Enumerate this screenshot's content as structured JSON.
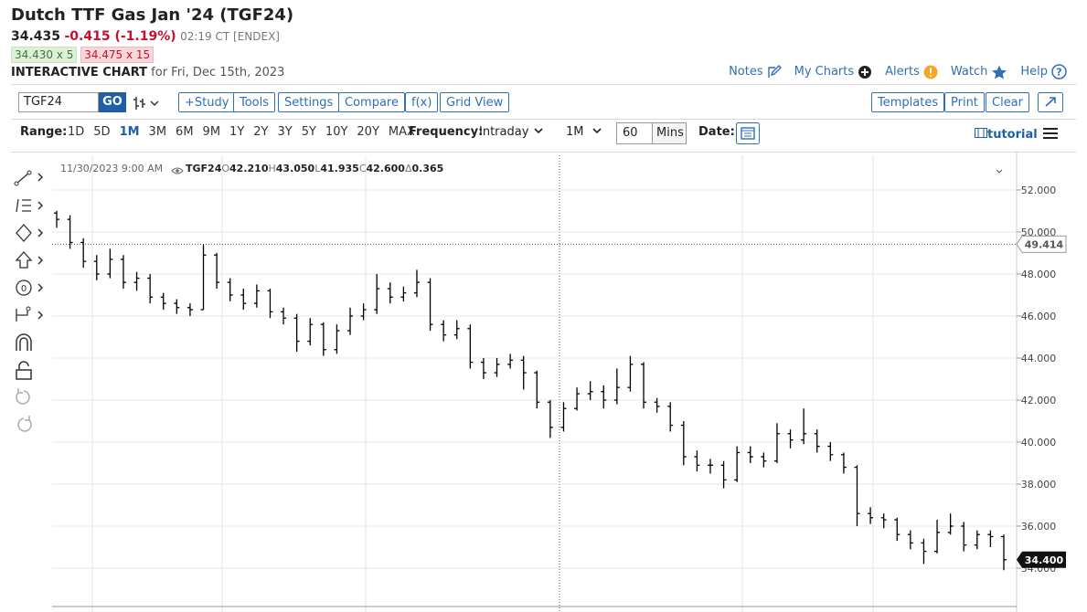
{
  "header": {
    "title": "Dutch TTF Gas Jan '24 (TGF24)",
    "last": "34.435",
    "change": "-0.415 (-1.19%)",
    "time": "02:19 CT [ENDEX]",
    "bid": "34.430 x 5",
    "ask": "34.475 x 15",
    "chart_label": "INTERACTIVE CHART",
    "chart_date": "for Fri, Dec 15th, 2023"
  },
  "links": [
    "Notes",
    "My Charts",
    "Alerts",
    "Watch",
    "Help"
  ],
  "toolbar": {
    "symbol": "TGF24",
    "go": "GO",
    "buttons": [
      "+Study",
      "Tools",
      "Settings",
      "Compare",
      "f(x)",
      "Grid View"
    ],
    "right_buttons": [
      "Templates",
      "Print",
      "Clear"
    ]
  },
  "range_bar": {
    "range_label": "Range:",
    "ranges": [
      "1D",
      "5D",
      "1M",
      "3M",
      "6M",
      "9M",
      "1Y",
      "2Y",
      "3Y",
      "5Y",
      "10Y",
      "20Y",
      "MAX"
    ],
    "active_range": 2,
    "frequency_label": "Frequency:",
    "frequency": "Intraday",
    "interval": "1M",
    "period": "60",
    "period_unit": "Mins",
    "date_label": "Date:",
    "tutorial": "tutorial"
  },
  "chart_data": {
    "type": "ohlc",
    "hover": {
      "date": "11/30/2023 9:00 AM",
      "symbol": "TGF24",
      "open_label": "O",
      "open": "42.210",
      "high_label": "H",
      "high": "43.050",
      "low_label": "L",
      "low": "41.935",
      "close_label": "C",
      "close": "42.600",
      "change_label": "Δ",
      "change": "0.365"
    },
    "ylim": [
      32.13,
      53.65
    ],
    "yticks": [
      {
        "value": 34,
        "label": "34.000"
      },
      {
        "value": 36,
        "label": "36.000"
      },
      {
        "value": 38,
        "label": "38.000"
      },
      {
        "value": 40,
        "label": "40.000"
      },
      {
        "value": 42,
        "label": "42.000"
      },
      {
        "value": 44,
        "label": "44.000"
      },
      {
        "value": 46,
        "label": "46.000"
      },
      {
        "value": 48,
        "label": "48.000"
      },
      {
        "value": 50,
        "label": "50.000"
      },
      {
        "value": 52,
        "label": "52.000"
      }
    ],
    "grid": true,
    "crosshair_price": {
      "value": 49.414,
      "label": "49.414"
    },
    "last_price": {
      "value": 34.4,
      "label": "34.400"
    },
    "series": [
      {
        "color": "#000000",
        "open": [
          50.9,
          50.6,
          49.5,
          48.6,
          48.0,
          48.7,
          47.6,
          47.8,
          46.9,
          46.6,
          46.4,
          46.3,
          48.9,
          47.6,
          47.0,
          46.6,
          47.2,
          46.2,
          45.9,
          44.8,
          45.6,
          44.4,
          45.3,
          46.0,
          46.3,
          47.3,
          46.9,
          47.1,
          47.6,
          45.6,
          45.1,
          45.4,
          43.8,
          43.3,
          43.7,
          43.9,
          43.3,
          41.9,
          40.7,
          41.6,
          42.3,
          42.4,
          42.0,
          42.6,
          43.7,
          41.9,
          41.7,
          40.8,
          39.3,
          38.9,
          38.9,
          38.2,
          39.5,
          39.3,
          39.1,
          40.4,
          40.1,
          40.4,
          39.8,
          39.4,
          38.8,
          36.6,
          36.4,
          36.3,
          35.6,
          35.2,
          34.8,
          35.7,
          36.0,
          35.1,
          35.6,
          35.5
        ],
        "high": [
          51.0,
          50.8,
          49.7,
          48.9,
          49.2,
          48.9,
          48.1,
          48.0,
          47.1,
          46.8,
          46.6,
          49.4,
          49.0,
          47.8,
          47.3,
          47.5,
          47.3,
          46.4,
          46.1,
          45.9,
          45.7,
          45.6,
          46.4,
          46.6,
          48.0,
          47.6,
          47.4,
          48.2,
          47.8,
          45.8,
          45.8,
          45.6,
          44.0,
          44.0,
          44.2,
          44.1,
          43.4,
          42.0,
          41.9,
          42.6,
          42.9,
          42.7,
          43.5,
          44.1,
          43.8,
          42.1,
          41.9,
          41.0,
          39.6,
          39.2,
          39.1,
          39.8,
          39.8,
          39.5,
          40.9,
          40.6,
          41.6,
          40.6,
          40.0,
          39.5,
          38.9,
          36.9,
          36.6,
          36.4,
          35.8,
          35.4,
          36.3,
          36.6,
          36.2,
          35.8,
          35.8,
          35.6
        ],
        "low": [
          50.2,
          49.2,
          48.3,
          47.7,
          47.8,
          47.3,
          47.2,
          46.6,
          46.3,
          46.1,
          46.0,
          46.3,
          47.3,
          46.7,
          46.3,
          46.4,
          45.9,
          45.6,
          44.3,
          44.6,
          44.1,
          44.2,
          45.1,
          45.8,
          46.1,
          46.6,
          46.7,
          46.9,
          45.3,
          44.8,
          44.9,
          43.5,
          43.0,
          43.1,
          43.5,
          42.5,
          41.6,
          40.2,
          40.5,
          41.5,
          42.0,
          41.6,
          41.8,
          42.4,
          41.6,
          41.4,
          40.5,
          38.9,
          38.6,
          38.5,
          37.8,
          38.1,
          39.0,
          38.8,
          39.0,
          39.7,
          39.9,
          39.5,
          39.1,
          38.5,
          36.0,
          36.1,
          35.9,
          35.3,
          34.9,
          34.2,
          34.7,
          35.6,
          34.8,
          34.9,
          35.0,
          33.9
        ],
        "close": [
          50.6,
          49.5,
          48.6,
          48.0,
          48.7,
          47.6,
          47.8,
          46.9,
          46.6,
          46.4,
          46.3,
          48.9,
          47.6,
          47.0,
          46.6,
          47.2,
          46.2,
          45.9,
          44.8,
          45.6,
          44.4,
          45.3,
          46.0,
          46.3,
          47.3,
          46.9,
          47.1,
          47.6,
          45.6,
          45.1,
          45.4,
          43.8,
          43.3,
          43.7,
          43.9,
          43.3,
          41.9,
          40.7,
          41.6,
          42.3,
          42.4,
          42.0,
          42.6,
          43.7,
          41.9,
          41.7,
          40.8,
          39.3,
          38.9,
          38.9,
          38.2,
          39.5,
          39.3,
          39.1,
          40.4,
          40.1,
          40.4,
          39.8,
          39.4,
          38.8,
          36.6,
          36.4,
          36.3,
          35.6,
          35.2,
          34.8,
          35.7,
          36.0,
          35.1,
          35.6,
          35.5,
          34.4
        ]
      }
    ]
  }
}
